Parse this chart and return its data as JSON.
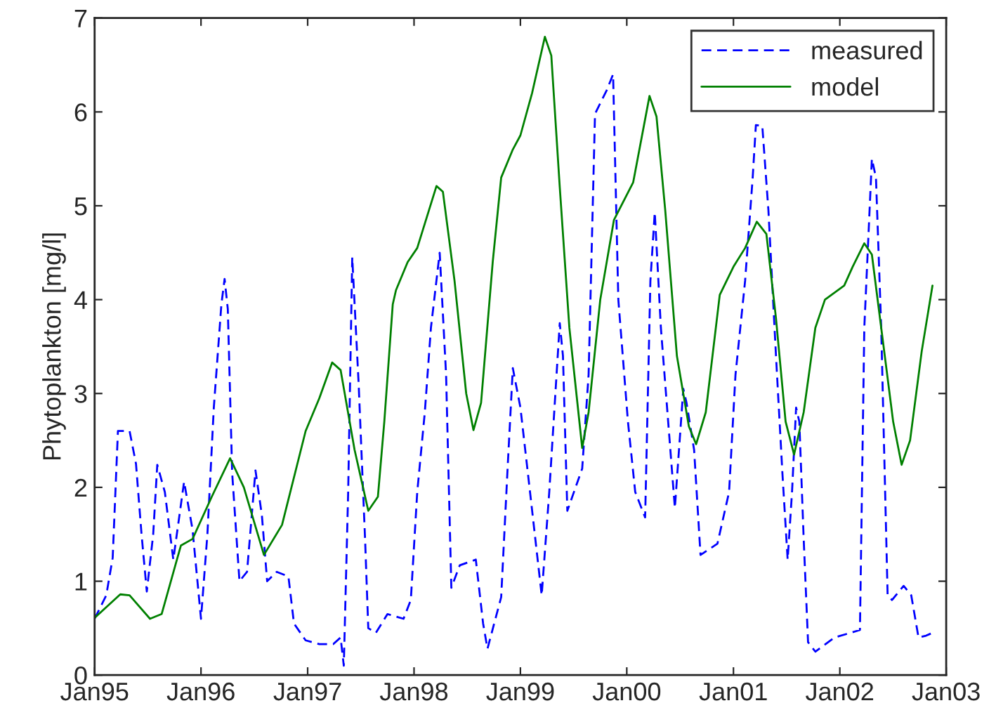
{
  "chart_data": {
    "type": "line",
    "ylabel": "Phytoplankton [mg/l]",
    "xlim": [
      "1995-01-01",
      "2003-01-01"
    ],
    "xticks": [
      {
        "value": "1995-01",
        "label": "Jan95"
      },
      {
        "value": "1996-01",
        "label": "Jan96"
      },
      {
        "value": "1997-01",
        "label": "Jan97"
      },
      {
        "value": "1998-01",
        "label": "Jan98"
      },
      {
        "value": "1999-01",
        "label": "Jan99"
      },
      {
        "value": "2000-01",
        "label": "Jan00"
      },
      {
        "value": "2001-01",
        "label": "Jan01"
      },
      {
        "value": "2002-01",
        "label": "Jan02"
      },
      {
        "value": "2003-01",
        "label": "Jan03"
      }
    ],
    "ylim": [
      0,
      7
    ],
    "yticks": [
      0,
      1,
      2,
      3,
      4,
      5,
      6,
      7
    ],
    "grid": false,
    "legend": "top right",
    "series": [
      {
        "name": "measured",
        "color": "#0000ff",
        "line_style": "dashed",
        "x": [
          "1995-01-01",
          "1995-02-10",
          "1995-03-04",
          "1995-03-22",
          "1995-05-01",
          "1995-05-23",
          "1995-06-11",
          "1995-06-29",
          "1995-07-21",
          "1995-08-04",
          "1995-08-30",
          "1995-09-28",
          "1995-11-04",
          "1995-12-03",
          "1996-01-01",
          "1996-01-23",
          "1996-02-14",
          "1996-03-11",
          "1996-03-22",
          "1996-04-02",
          "1996-04-17",
          "1996-05-12",
          "1996-06-07",
          "1996-07-06",
          "1996-07-28",
          "1996-08-15",
          "1996-09-17",
          "1996-10-27",
          "1996-11-15",
          "1996-12-25",
          "1997-02-10",
          "1997-03-30",
          "1997-04-24",
          "1997-05-05",
          "1997-05-20",
          "1997-06-03",
          "1997-06-25",
          "1997-07-17",
          "1997-07-28",
          "1997-08-23",
          "1997-10-02",
          "1997-11-26",
          "1997-12-21",
          "1998-01-12",
          "1998-02-07",
          "1998-02-28",
          "1998-03-30",
          "1998-04-21",
          "1998-05-09",
          "1998-06-07",
          "1998-08-01",
          "1998-08-26",
          "1998-09-10",
          "1998-10-27",
          "1998-11-18",
          "1998-12-06",
          "1999-01-01",
          "1999-02-03",
          "1999-03-15",
          "1999-04-10",
          "1999-05-16",
          "1999-05-27",
          "1999-06-11",
          "1999-08-01",
          "1999-08-23",
          "1999-09-14",
          "1999-10-24",
          "1999-11-15",
          "1999-12-03",
          "2000-01-05",
          "2000-01-30",
          "2000-03-04",
          "2000-03-22",
          "2000-04-06",
          "2000-04-27",
          "2000-06-14",
          "2000-07-13",
          "2000-07-24",
          "2000-08-19",
          "2000-09-10",
          "2000-11-07",
          "2000-12-17",
          "2001-01-08",
          "2001-02-10",
          "2001-03-08",
          "2001-03-19",
          "2001-04-10",
          "2001-05-01",
          "2001-05-27",
          "2001-06-18",
          "2001-07-06",
          "2001-07-21",
          "2001-08-04",
          "2001-08-15",
          "2001-08-30",
          "2001-09-14",
          "2001-10-09",
          "2001-12-14",
          "2002-03-11",
          "2002-03-26",
          "2002-04-21",
          "2002-05-05",
          "2002-05-23",
          "2002-06-14",
          "2002-06-29",
          "2002-08-08",
          "2002-09-03",
          "2002-09-28",
          "2002-10-24",
          "2002-11-15"
        ],
        "values": [
          0.6,
          0.85,
          1.25,
          2.6,
          2.6,
          2.25,
          1.5,
          0.89,
          1.5,
          2.24,
          1.95,
          1.23,
          2.06,
          1.55,
          0.6,
          1.5,
          2.85,
          3.95,
          4.22,
          3.9,
          2.15,
          1.0,
          1.1,
          2.18,
          1.7,
          1.0,
          1.1,
          1.05,
          0.55,
          0.37,
          0.33,
          0.33,
          0.4,
          0.1,
          1.95,
          4.45,
          3.1,
          1.45,
          0.5,
          0.45,
          0.65,
          0.6,
          0.8,
          1.95,
          2.8,
          3.7,
          4.5,
          3.2,
          0.93,
          1.17,
          1.23,
          0.55,
          0.28,
          0.83,
          2.2,
          3.27,
          2.85,
          1.95,
          0.85,
          1.95,
          3.75,
          3.4,
          1.75,
          2.2,
          3.2,
          5.98,
          6.23,
          6.4,
          4.0,
          2.7,
          1.95,
          1.68,
          4.2,
          4.93,
          3.7,
          1.78,
          3.05,
          2.9,
          2.4,
          1.28,
          1.4,
          1.95,
          3.2,
          4.2,
          5.3,
          5.86,
          5.85,
          4.95,
          3.4,
          2.15,
          1.23,
          1.95,
          2.85,
          2.7,
          1.45,
          0.35,
          0.25,
          0.4,
          0.48,
          3.7,
          5.5,
          5.3,
          3.7,
          0.85,
          0.8,
          0.95,
          0.85,
          0.4,
          0.42,
          0.45
        ]
      },
      {
        "name": "model",
        "color": "#008000",
        "line_style": "solid",
        "x": [
          "1995-01-01",
          "1995-03-30",
          "1995-05-01",
          "1995-07-10",
          "1995-08-19",
          "1995-10-24",
          "1995-12-03",
          "1996-02-07",
          "1996-04-10",
          "1996-05-27",
          "1996-08-04",
          "1996-10-05",
          "1996-12-25",
          "1997-02-10",
          "1997-03-26",
          "1997-04-24",
          "1997-06-11",
          "1997-07-28",
          "1997-08-30",
          "1997-09-21",
          "1997-10-20",
          "1997-10-31",
          "1997-12-10",
          "1998-01-12",
          "1998-02-21",
          "1998-03-19",
          "1998-04-10",
          "1998-05-20",
          "1998-06-29",
          "1998-07-24",
          "1998-08-19",
          "1998-09-28",
          "1998-10-27",
          "1998-12-06",
          "1999-01-01",
          "1999-02-10",
          "1999-03-26",
          "1999-04-17",
          "1999-05-16",
          "1999-06-18",
          "1999-08-01",
          "1999-08-23",
          "1999-10-02",
          "1999-11-18",
          "2000-01-23",
          "2000-03-19",
          "2000-04-12",
          "2000-05-12",
          "2000-06-21",
          "2000-08-01",
          "2000-08-26",
          "2000-09-28",
          "2000-11-15",
          "2001-01-01",
          "2001-02-10",
          "2001-03-22",
          "2001-04-24",
          "2001-05-27",
          "2001-06-29",
          "2001-07-28",
          "2001-08-30",
          "2001-10-09",
          "2001-11-11",
          "2002-01-16",
          "2002-02-14",
          "2002-03-26",
          "2002-04-21",
          "2002-05-23",
          "2002-07-03",
          "2002-08-01",
          "2002-08-30",
          "2002-10-09",
          "2002-11-15"
        ],
        "values": [
          0.61,
          0.86,
          0.85,
          0.6,
          0.65,
          1.38,
          1.45,
          1.9,
          2.31,
          2.0,
          1.28,
          1.6,
          2.6,
          2.95,
          3.33,
          3.25,
          2.4,
          1.75,
          1.9,
          2.7,
          3.95,
          4.1,
          4.4,
          4.55,
          4.95,
          5.21,
          5.15,
          4.2,
          3.0,
          2.61,
          2.9,
          4.4,
          5.3,
          5.6,
          5.75,
          6.2,
          6.8,
          6.6,
          5.2,
          3.7,
          2.42,
          2.8,
          4.0,
          4.85,
          5.25,
          6.17,
          5.95,
          4.95,
          3.4,
          2.65,
          2.46,
          2.8,
          4.05,
          4.35,
          4.55,
          4.83,
          4.7,
          3.8,
          2.7,
          2.35,
          2.8,
          3.7,
          4.0,
          4.15,
          4.35,
          4.6,
          4.48,
          3.7,
          2.7,
          2.24,
          2.5,
          3.45,
          4.15
        ]
      }
    ]
  }
}
